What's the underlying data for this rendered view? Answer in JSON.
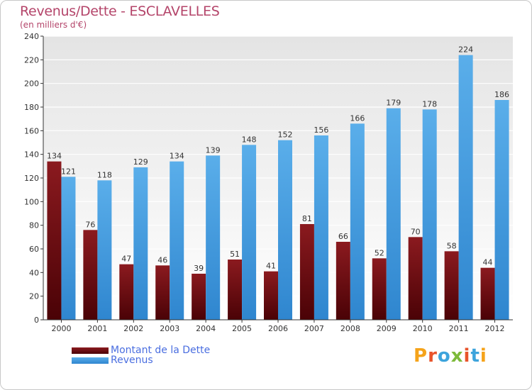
{
  "chart_data": {
    "type": "bar",
    "title": "Revenus/Dette - ESCLAVELLES",
    "subtitle": "(en milliers d'€)",
    "categories": [
      "2000",
      "2001",
      "2002",
      "2003",
      "2004",
      "2005",
      "2006",
      "2007",
      "2008",
      "2009",
      "2010",
      "2011",
      "2012"
    ],
    "series": [
      {
        "name": "Montant de la Dette",
        "color": "#7a0f14",
        "values": [
          134,
          76,
          47,
          46,
          39,
          51,
          41,
          81,
          66,
          52,
          70,
          58,
          44
        ]
      },
      {
        "name": "Revenus",
        "color": "#4fa3e6",
        "values": [
          121,
          118,
          129,
          134,
          139,
          148,
          152,
          156,
          166,
          179,
          178,
          224,
          186
        ]
      }
    ],
    "ylim": [
      0,
      240
    ],
    "yticks": [
      0,
      20,
      40,
      60,
      80,
      100,
      120,
      140,
      160,
      180,
      200,
      220,
      240
    ],
    "grid": true,
    "legend": "bottom-left"
  },
  "logo": {
    "text": "Proxiti",
    "colors": [
      "#f5a31a",
      "#e8542c",
      "#3da4dc",
      "#7dba3a",
      "#e8542c",
      "#3da4dc",
      "#f5a31a"
    ]
  }
}
